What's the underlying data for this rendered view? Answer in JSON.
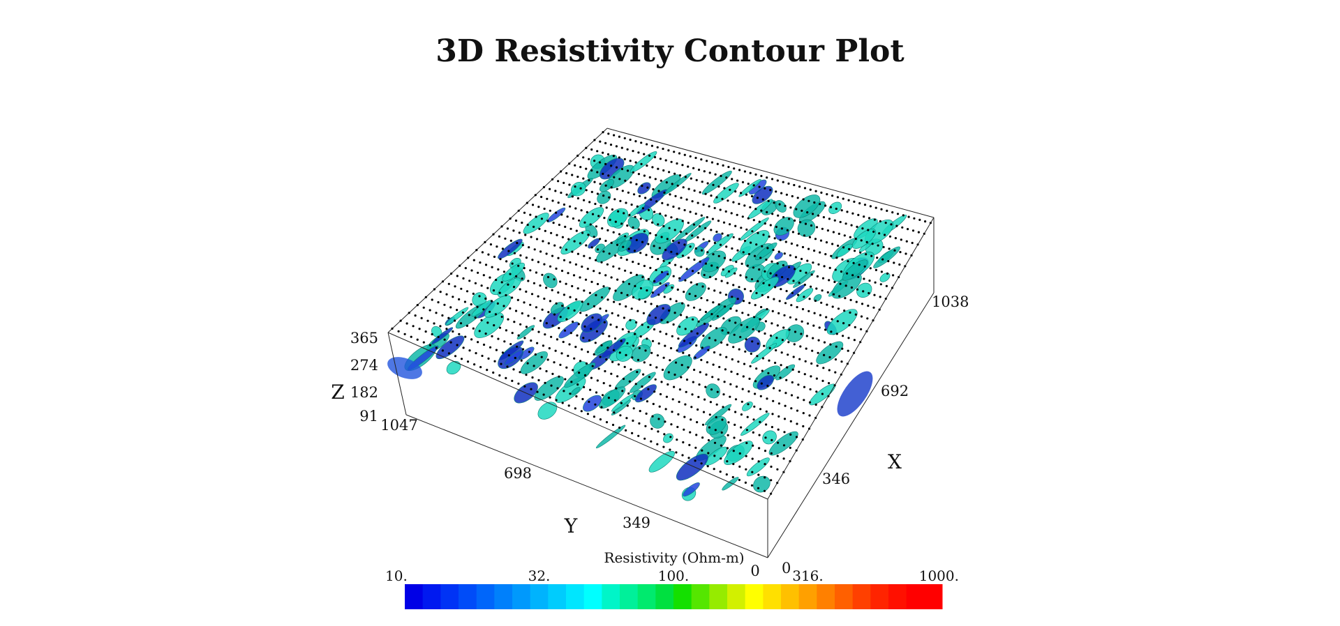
{
  "chart_data": {
    "type": "3d-contour",
    "title": "3D Resistivity Contour Plot",
    "axes": {
      "x": {
        "label": "X",
        "ticks": [
          "0",
          "346",
          "692",
          "1038"
        ],
        "range": [
          0,
          1038
        ]
      },
      "y": {
        "label": "Y",
        "ticks": [
          "0",
          "349",
          "698",
          "1047"
        ],
        "range": [
          0,
          1047
        ]
      },
      "z": {
        "label": "Z",
        "ticks": [
          "91",
          "182",
          "274",
          "365"
        ],
        "range": [
          91,
          365
        ]
      }
    },
    "colorbar": {
      "label": "Resistivity (Ohm-m)",
      "ticks": [
        "10.",
        "32.",
        "100.",
        "316.",
        "1000."
      ],
      "range": [
        10,
        1000
      ],
      "scale": "log",
      "colors": [
        "#0000e6",
        "#0019f0",
        "#0033f5",
        "#004cf8",
        "#0066fa",
        "#0080fb",
        "#0099fc",
        "#00b3fd",
        "#00ccfd",
        "#00e6fe",
        "#00ffff",
        "#00f5c8",
        "#00f09a",
        "#00ea6e",
        "#00e040",
        "#14e000",
        "#55e600",
        "#96eb00",
        "#d2f000",
        "#ffff00",
        "#ffe000",
        "#ffc000",
        "#ffa000",
        "#ff8000",
        "#ff6000",
        "#ff4000",
        "#ff2400",
        "#ff1000",
        "#ff0000",
        "#ff0000"
      ]
    },
    "isosurface_colors": [
      "#1fd8c0",
      "#10b8a8",
      "#2244dd",
      "#1030c0"
    ],
    "electrode_lines": 26
  }
}
